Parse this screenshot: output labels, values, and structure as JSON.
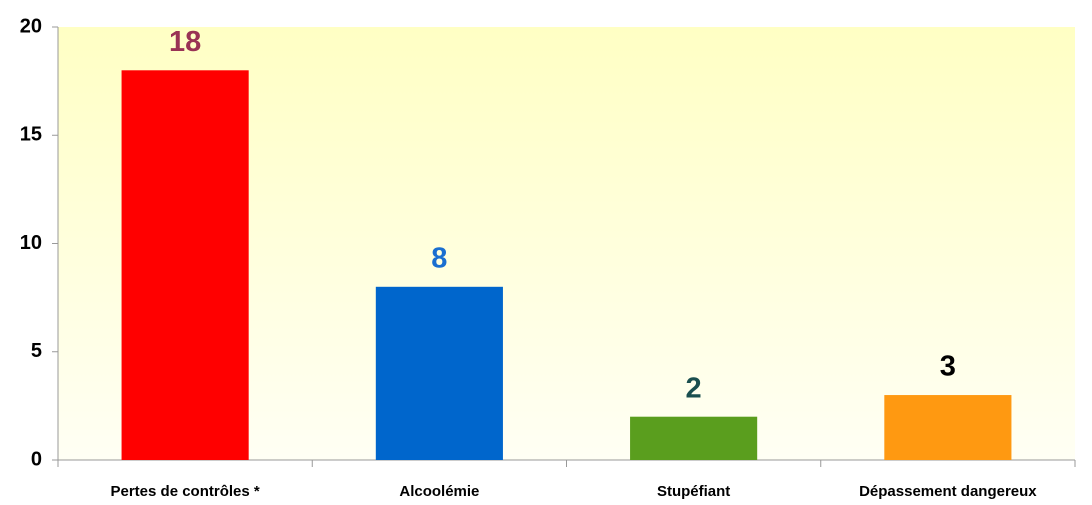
{
  "chart_data": {
    "type": "bar",
    "categories": [
      "Pertes de contrôles *",
      "Alcoolémie",
      "Stupéfiant",
      "Dépassement dangereux"
    ],
    "values": [
      18,
      8,
      2,
      3
    ],
    "colors": [
      "#ff0000",
      "#0066cc",
      "#5a9e1e",
      "#ff9911"
    ],
    "value_label_colors": [
      "#993355",
      "#1a6fd0",
      "#1a4f4f",
      "#000000"
    ],
    "ylim": [
      0,
      20
    ],
    "yticks": [
      0,
      5,
      10,
      15,
      20
    ],
    "grid": false
  }
}
